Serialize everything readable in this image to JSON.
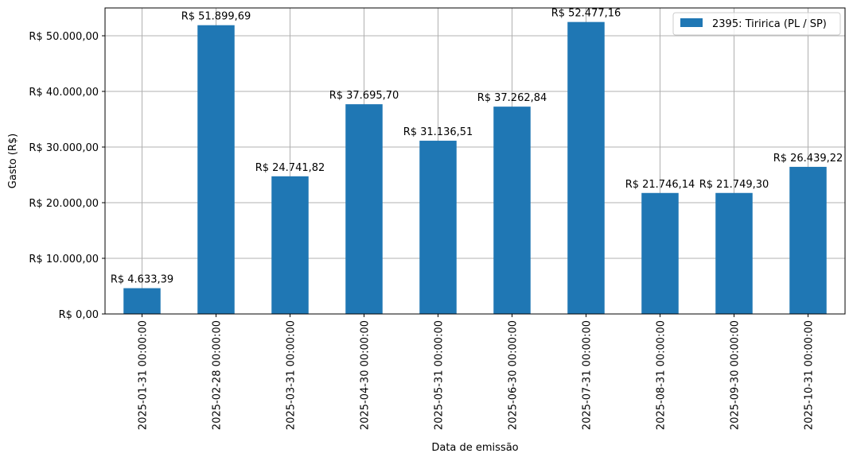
{
  "chart_data": {
    "type": "bar",
    "xlabel": "Data de emissão",
    "ylabel": "Gasto (R$)",
    "ylim": [
      0,
      55000
    ],
    "grid": true,
    "legend_position": "top-right",
    "bar_color": "#1f77b4",
    "categories": [
      "2025-01-31 00:00:00",
      "2025-02-28 00:00:00",
      "2025-03-31 00:00:00",
      "2025-04-30 00:00:00",
      "2025-05-31 00:00:00",
      "2025-06-30 00:00:00",
      "2025-07-31 00:00:00",
      "2025-08-31 00:00:00",
      "2025-09-30 00:00:00",
      "2025-10-31 00:00:00"
    ],
    "series": [
      {
        "name": "2395: Tiririca (PL / SP)",
        "values": [
          4633.39,
          51899.69,
          24741.82,
          37695.7,
          31136.51,
          37262.84,
          52477.16,
          21746.14,
          21749.3,
          26439.22
        ],
        "labels": [
          "R$ 4.633,39",
          "R$ 51.899,69",
          "R$ 24.741,82",
          "R$ 37.695,70",
          "R$ 31.136,51",
          "R$ 37.262,84",
          "R$ 52.477,16",
          "R$ 21.746,14",
          "R$ 21.749,30",
          "R$ 26.439,22"
        ]
      }
    ],
    "yticks": [
      0,
      10000,
      20000,
      30000,
      40000,
      50000
    ],
    "ytick_labels": [
      "R$ 0,00",
      "R$ 10.000,00",
      "R$ 20.000,00",
      "R$ 30.000,00",
      "R$ 40.000,00",
      "R$ 50.000,00"
    ]
  }
}
